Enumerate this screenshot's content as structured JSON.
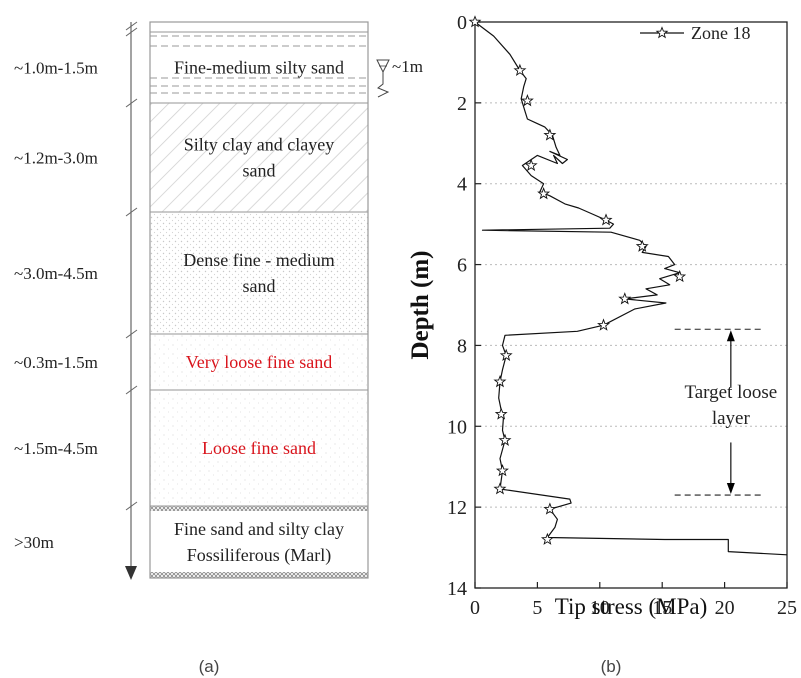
{
  "soil_profile": {
    "panel_label": "(a)",
    "water_table_label": "~1m",
    "layers": [
      {
        "thickness": "~1.0m-1.5m",
        "description": [
          "Fine-medium silty sand"
        ],
        "pattern": "dashed-lines",
        "text_color": "#222222"
      },
      {
        "thickness": "~1.2m-3.0m",
        "description": [
          "Silty clay and clayey",
          "sand"
        ],
        "pattern": "hatch",
        "text_color": "#222222"
      },
      {
        "thickness": "~3.0m-4.5m",
        "description": [
          "Dense fine - medium",
          "sand"
        ],
        "pattern": "dots",
        "text_color": "#222222"
      },
      {
        "thickness": "~0.3m-1.5m",
        "description": [
          "Very loose fine sand"
        ],
        "pattern": "sparse-dots",
        "text_color": "#d9141c"
      },
      {
        "thickness": "~1.5m-4.5m",
        "description": [
          "Loose fine sand"
        ],
        "pattern": "sparse-dots",
        "text_color": "#d9141c"
      },
      {
        "thickness": ">30m",
        "description": [
          "Fine sand and silty clay",
          "Fossiliferous (Marl)"
        ],
        "pattern": "cross-band",
        "text_color": "#222222"
      }
    ]
  },
  "chart_data": {
    "type": "line",
    "panel_label": "(b)",
    "xlabel": "Tip stress (MPa)",
    "ylabel": "Depth (m)",
    "xlim": [
      0,
      25
    ],
    "ylim": [
      0,
      14
    ],
    "y_inverted": true,
    "x_axis_position": "bottom",
    "xticks": [
      0,
      5,
      10,
      15,
      20,
      25
    ],
    "yticks": [
      0,
      2,
      4,
      6,
      8,
      10,
      12,
      14
    ],
    "grid": "horizontal-dotted",
    "legend": {
      "position": "top-right",
      "entries": [
        "Zone 18"
      ]
    },
    "series": [
      {
        "name": "Zone 18",
        "marker": "star",
        "x": [
          0.0,
          1.5,
          2.8,
          3.6,
          4.1,
          3.9,
          3.7,
          4.0,
          4.2,
          4.9,
          5.6,
          6.2,
          6.5,
          6.8,
          6.0,
          7.4,
          7.0,
          6.3,
          6.6,
          5.0,
          3.8,
          4.5,
          5.5,
          5.2,
          6.0,
          7.2,
          8.3,
          9.4,
          10.5,
          11.1,
          10.8,
          0.6,
          10.9,
          13.2,
          13.7,
          13.4,
          15.5,
          16.0,
          15.2,
          16.4,
          14.8,
          15.6,
          13.7,
          14.6,
          12.0,
          15.3,
          12.8,
          10.3,
          8.2,
          2.4,
          2.2,
          2.5,
          2.2,
          2.0,
          1.9,
          2.1,
          2.3,
          2.2,
          2.4,
          2.0,
          2.2,
          2.0,
          7.6,
          7.7,
          6.0,
          6.6,
          6.4,
          5.8,
          15.2,
          20.3,
          20.3,
          25.0
        ],
        "y": [
          0.0,
          0.35,
          0.8,
          1.2,
          1.4,
          1.6,
          1.9,
          2.2,
          2.4,
          2.5,
          2.6,
          2.8,
          3.1,
          3.3,
          3.2,
          3.4,
          3.5,
          3.3,
          3.5,
          3.3,
          3.55,
          3.8,
          4.0,
          4.2,
          4.3,
          4.5,
          4.6,
          4.75,
          4.9,
          5.0,
          5.1,
          5.15,
          5.2,
          5.4,
          5.55,
          5.7,
          5.8,
          6.0,
          6.1,
          6.2,
          6.35,
          6.5,
          6.6,
          6.75,
          6.85,
          6.95,
          7.1,
          7.5,
          7.65,
          7.75,
          8.0,
          8.25,
          8.6,
          8.9,
          9.3,
          9.6,
          9.7,
          10.1,
          10.35,
          10.8,
          11.1,
          11.55,
          11.8,
          11.9,
          12.05,
          12.3,
          12.5,
          12.75,
          12.8,
          12.8,
          13.1,
          13.18
        ],
        "marker_x": [
          0.0,
          3.6,
          4.2,
          6.0,
          4.5,
          5.5,
          10.5,
          13.4,
          16.4,
          12.0,
          10.3,
          2.5,
          2.0,
          2.1,
          2.4,
          2.2,
          2.0,
          6.0,
          5.8
        ],
        "marker_y": [
          0.0,
          1.2,
          1.95,
          2.8,
          3.55,
          4.25,
          4.9,
          5.55,
          6.3,
          6.85,
          7.5,
          8.25,
          8.9,
          9.7,
          10.35,
          11.1,
          11.55,
          12.05,
          12.8
        ]
      }
    ],
    "annotations": [
      {
        "type": "dashed-line",
        "y": 7.6,
        "x_from": 16.0,
        "x_to": 23.0
      },
      {
        "type": "dashed-line",
        "y": 11.7,
        "x_from": 16.0,
        "x_to": 23.0
      },
      {
        "type": "double-arrow",
        "x": 20.5,
        "y_from": 7.6,
        "y_to": 11.7
      },
      {
        "type": "text",
        "lines": [
          "Target loose",
          "layer"
        ],
        "x": 20.5,
        "y": 9.7
      }
    ]
  }
}
